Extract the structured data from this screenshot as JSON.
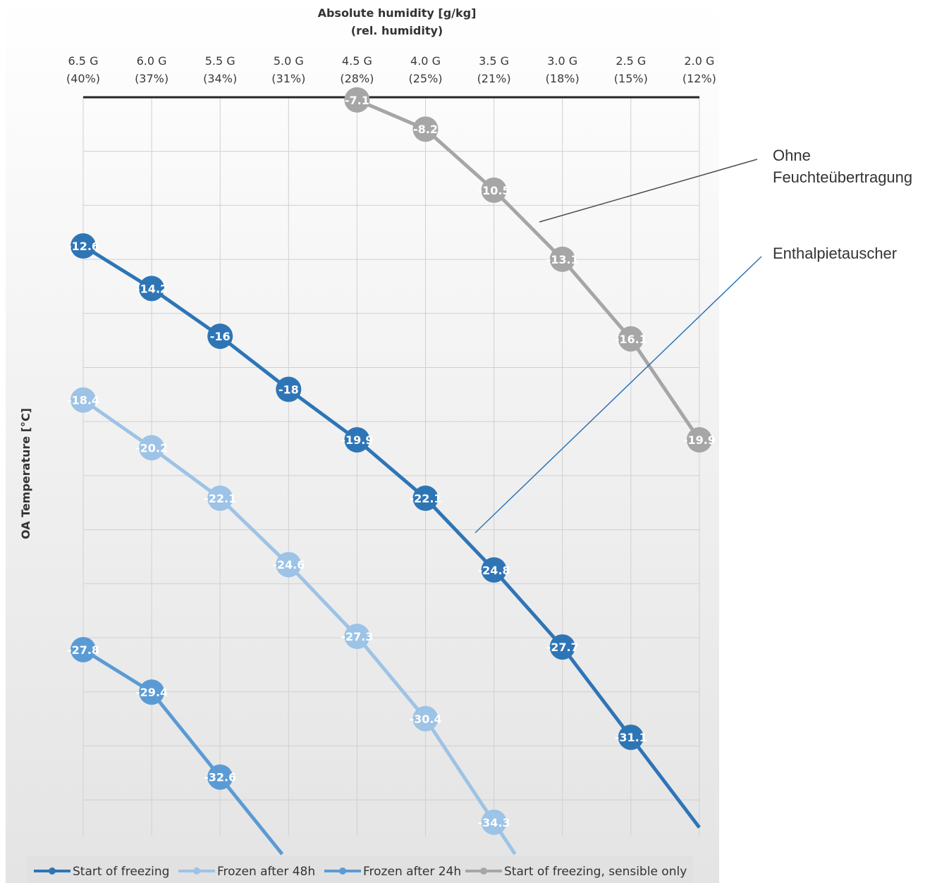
{
  "chart_data": {
    "type": "line",
    "title": "Absolute humidity [g/kg]",
    "subtitle": "(rel. humidity)",
    "ylabel": "OA Temperature [°C]",
    "x_tick_labels": [
      [
        "6.5 G",
        "(40%)"
      ],
      [
        "6.0 G",
        "(37%)"
      ],
      [
        "5.5 G",
        "(34%)"
      ],
      [
        "5.0 G",
        "(31%)"
      ],
      [
        "4.5 G",
        "(28%)"
      ],
      [
        "4.0 G",
        "(25%)"
      ],
      [
        "3.5 G",
        "(21%)"
      ],
      [
        "3.0 G",
        "(18%)"
      ],
      [
        "2.5 G",
        "(15%)"
      ],
      [
        "2.0 G",
        "(12%)"
      ]
    ],
    "x_values": [
      6.5,
      6.0,
      5.5,
      5.0,
      4.5,
      4.0,
      3.5,
      3.0,
      2.5,
      2.0
    ],
    "ylim": [
      -35.5,
      -7.0
    ],
    "x_axis_position": "top",
    "grid": true,
    "legend": "bottom",
    "series": [
      {
        "name": "Start of freezing",
        "color": "#2e75b6",
        "values": [
          -12.6,
          -14.2,
          -16,
          -18,
          -19.9,
          -22.1,
          -24.8,
          -27.7,
          -31.1,
          null
        ]
      },
      {
        "name": "Frozen after 48h",
        "color": "#9dc3e6",
        "values": [
          -18.4,
          -20.2,
          -22.1,
          -24.6,
          -27.3,
          -30.4,
          -34.3,
          null,
          null,
          null
        ]
      },
      {
        "name": "Frozen after 24h",
        "color": "#5b9bd5",
        "values": [
          -27.8,
          -29.4,
          -32.6,
          null,
          null,
          null,
          null,
          null,
          null,
          null
        ]
      },
      {
        "name": "Start of freezing, sensible only",
        "color": "#a6a6a6",
        "values": [
          null,
          null,
          null,
          null,
          -7.1,
          -8.2,
          -10.5,
          -13.1,
          -16.1,
          -19.9
        ]
      }
    ]
  },
  "annotations": {
    "ohne_line1": "Ohne",
    "ohne_line2": "Feuchteübertragung",
    "enthalpie": "Enthalpietauscher"
  }
}
